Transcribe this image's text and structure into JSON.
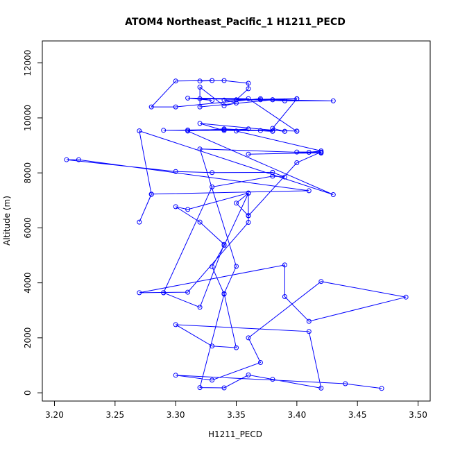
{
  "chart_data": {
    "type": "line",
    "title": "ATOM4 Northeast_Pacific_1 H1211_PECD",
    "xlabel": "H1211_PECD",
    "ylabel": "Altitude (m)",
    "xlim": [
      3.19,
      3.51
    ],
    "ylim": [
      -300,
      12800
    ],
    "xticks": [
      3.2,
      3.25,
      3.3,
      3.35,
      3.4,
      3.45,
      3.5
    ],
    "xtick_labels": [
      "3.20",
      "3.25",
      "3.30",
      "3.35",
      "3.40",
      "3.45",
      "3.50"
    ],
    "yticks": [
      0,
      2000,
      4000,
      6000,
      8000,
      10000,
      12000
    ],
    "ytick_labels": [
      "0",
      "2000",
      "4000",
      "6000",
      "8000",
      "10000",
      "12000"
    ],
    "grid": false,
    "color": "#0000ff",
    "series": [
      {
        "marker": "open-circle",
        "points": [
          [
            3.47,
            160
          ],
          [
            3.44,
            330
          ],
          [
            3.3,
            640
          ],
          [
            3.33,
            460
          ],
          [
            3.37,
            1100
          ],
          [
            3.36,
            2000
          ],
          [
            3.42,
            4050
          ],
          [
            3.49,
            3480
          ],
          [
            3.41,
            2600
          ],
          [
            3.39,
            3500
          ],
          [
            3.39,
            4650
          ],
          [
            3.27,
            3640
          ],
          [
            3.31,
            3660
          ],
          [
            3.36,
            6200
          ],
          [
            3.36,
            6450
          ],
          [
            3.36,
            7270
          ],
          [
            3.31,
            6670
          ],
          [
            3.3,
            6770
          ],
          [
            3.32,
            6210
          ],
          [
            3.34,
            5400
          ],
          [
            3.32,
            3110
          ],
          [
            3.29,
            3640
          ],
          [
            3.29,
            3640
          ],
          [
            3.33,
            7490
          ],
          [
            3.38,
            7880
          ],
          [
            3.39,
            7850
          ],
          [
            3.38,
            8020
          ],
          [
            3.33,
            8010
          ],
          [
            3.3,
            8050
          ],
          [
            3.21,
            8480
          ],
          [
            3.22,
            8480
          ],
          [
            3.41,
            7350
          ],
          [
            3.28,
            7230
          ],
          [
            3.27,
            6210
          ],
          [
            3.28,
            7220
          ],
          [
            3.27,
            9530
          ],
          [
            3.43,
            7210
          ],
          [
            3.31,
            9520
          ],
          [
            3.34,
            9600
          ],
          [
            3.38,
            9510
          ],
          [
            3.38,
            9520
          ],
          [
            3.37,
            9540
          ],
          [
            3.29,
            9550
          ],
          [
            3.31,
            9560
          ],
          [
            3.34,
            9580
          ],
          [
            3.4,
            9520
          ],
          [
            3.4,
            9510
          ],
          [
            3.36,
            10700
          ],
          [
            3.31,
            10720
          ],
          [
            3.33,
            10640
          ],
          [
            3.32,
            10700
          ],
          [
            3.43,
            10620
          ],
          [
            3.39,
            10620
          ],
          [
            3.37,
            10660
          ],
          [
            3.37,
            10700
          ],
          [
            3.3,
            10400
          ],
          [
            3.28,
            10400
          ],
          [
            3.3,
            11340
          ],
          [
            3.33,
            11360
          ],
          [
            3.32,
            11340
          ],
          [
            3.34,
            11360
          ],
          [
            3.36,
            11260
          ],
          [
            3.36,
            11060
          ],
          [
            3.35,
            10660
          ],
          [
            3.4,
            10700
          ],
          [
            3.38,
            10660
          ],
          [
            3.34,
            10650
          ],
          [
            3.35,
            10540
          ],
          [
            3.34,
            10440
          ],
          [
            3.32,
            11120
          ],
          [
            3.32,
            10400
          ],
          [
            3.38,
            10660
          ],
          [
            3.4,
            10690
          ],
          [
            3.38,
            9620
          ],
          [
            3.39,
            9510
          ],
          [
            3.39,
            9510
          ],
          [
            3.32,
            9800
          ],
          [
            3.34,
            9540
          ],
          [
            3.36,
            9600
          ],
          [
            3.35,
            9520
          ],
          [
            3.42,
            8800
          ],
          [
            3.41,
            8750
          ],
          [
            3.4,
            8760
          ],
          [
            3.42,
            8760
          ],
          [
            3.4,
            8370
          ],
          [
            3.36,
            6440
          ],
          [
            3.35,
            6900
          ],
          [
            3.36,
            7260
          ],
          [
            3.34,
            5360
          ],
          [
            3.33,
            4590
          ],
          [
            3.34,
            3590
          ],
          [
            3.32,
            190
          ],
          [
            3.34,
            180
          ],
          [
            3.36,
            650
          ],
          [
            3.38,
            490
          ],
          [
            3.42,
            170
          ],
          [
            3.41,
            2230
          ],
          [
            3.3,
            2480
          ],
          [
            3.33,
            1700
          ],
          [
            3.35,
            1640
          ],
          [
            3.34,
            3610
          ],
          [
            3.35,
            4600
          ],
          [
            3.32,
            8870
          ],
          [
            3.42,
            8720
          ],
          [
            3.42,
            8730
          ],
          [
            3.36,
            8680
          ]
        ]
      }
    ]
  }
}
